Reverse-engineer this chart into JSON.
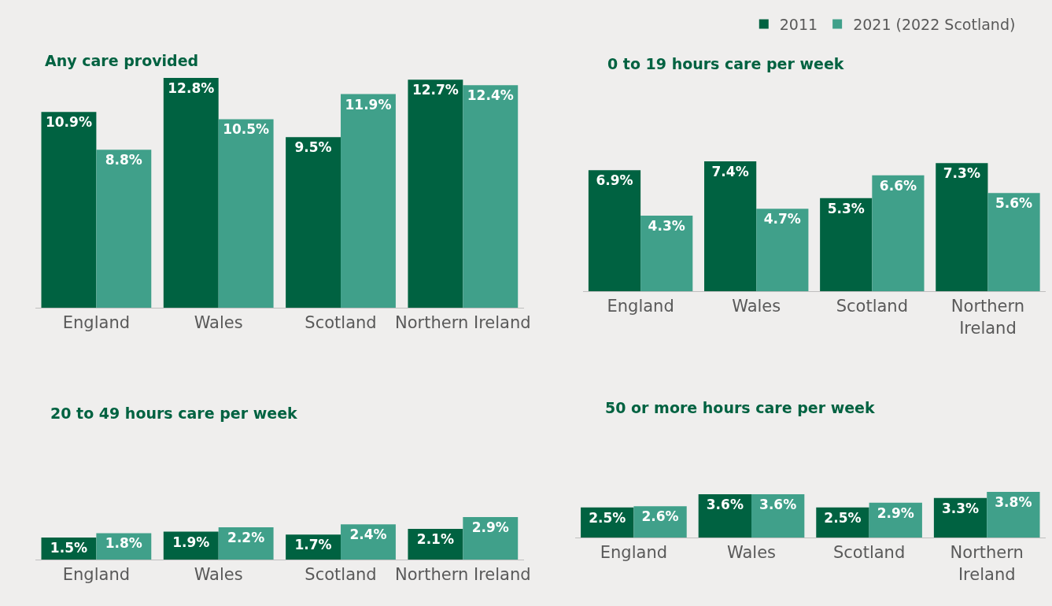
{
  "chart_data": [
    {
      "type": "bar",
      "title": "Any care provided",
      "categories": [
        "England",
        "Wales",
        "Scotland",
        "Northern Ireland"
      ],
      "legend": "top right",
      "series": [
        {
          "name": "2011",
          "color": "#006241",
          "values": [
            10.9,
            12.8,
            9.5,
            12.7
          ],
          "value_labels": [
            "10.9%",
            "12.8%",
            "9.5%",
            "12.7%"
          ]
        },
        {
          "name": "2021 (2022 Scotland)",
          "color": "#40a08a",
          "values": [
            8.8,
            10.5,
            11.9,
            12.4
          ],
          "value_labels": [
            "8.8%",
            "10.5%",
            "11.9%",
            "12.4%"
          ]
        }
      ]
    },
    {
      "type": "bar",
      "title": "0 to 19 hours care per week",
      "categories": [
        "England",
        "Wales",
        "Scotland",
        "Northern Ireland"
      ],
      "series": [
        {
          "color": "#006241",
          "values": [
            6.9,
            7.4,
            5.3,
            7.3
          ],
          "value_labels": [
            "6.9%",
            "7.4%",
            "5.3%",
            "7.3%"
          ]
        },
        {
          "color": "#40a08a",
          "values": [
            4.3,
            4.7,
            6.6,
            5.6
          ],
          "value_labels": [
            "4.3%",
            "4.7%",
            "6.6%",
            "5.6%"
          ]
        }
      ]
    },
    {
      "type": "bar",
      "title": "20 to 49 hours care per week",
      "categories": [
        "England",
        "Wales",
        "Scotland",
        "Northern Ireland"
      ],
      "series": [
        {
          "color": "#006241",
          "values": [
            1.5,
            1.9,
            1.7,
            2.1
          ],
          "value_labels": [
            "1.5%",
            "1.9%",
            "1.7%",
            "2.1%"
          ]
        },
        {
          "color": "#40a08a",
          "values": [
            1.8,
            2.2,
            2.4,
            2.9
          ],
          "value_labels": [
            "1.8%",
            "2.2%",
            "2.4%",
            "2.9%"
          ]
        }
      ]
    },
    {
      "type": "bar",
      "title": "50 or more hours care per week",
      "categories": [
        "England",
        "Wales",
        "Scotland",
        "Northern Ireland"
      ],
      "series": [
        {
          "color": "#006241",
          "values": [
            2.5,
            3.6,
            2.5,
            3.3
          ],
          "value_labels": [
            "2.5%",
            "3.6%",
            "2.5%",
            "3.3%"
          ]
        },
        {
          "color": "#40a08a",
          "values": [
            2.6,
            3.6,
            2.9,
            3.8
          ],
          "value_labels": [
            "2.6%",
            "3.6%",
            "2.9%",
            "3.8%"
          ]
        }
      ]
    }
  ]
}
